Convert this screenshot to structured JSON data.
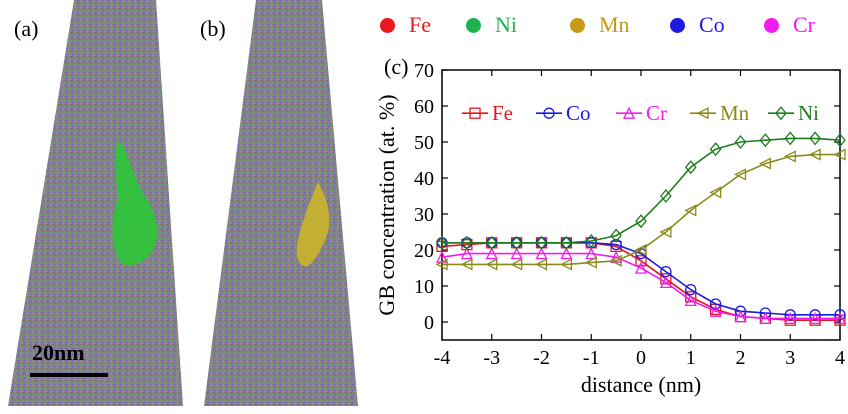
{
  "panels": {
    "a": "(a)",
    "b": "(b)",
    "c": "(c)"
  },
  "scale_bar": "20nm",
  "element_legend": [
    {
      "name": "Fe",
      "color": "#e8171e"
    },
    {
      "name": "Ni",
      "color": "#1fb34f"
    },
    {
      "name": "Mn",
      "color": "#c59a14"
    },
    {
      "name": "Co",
      "color": "#1c1ce0"
    },
    {
      "name": "Cr",
      "color": "#f01cf0"
    }
  ],
  "chart_data": {
    "type": "line",
    "xlabel": "distance (nm)",
    "ylabel": "GB concentration (at. %)",
    "xlim": [
      -4,
      4
    ],
    "ylim": [
      -5,
      70
    ],
    "xticks": [
      "-4",
      "-3",
      "-2",
      "-1",
      "0",
      "1",
      "2",
      "3",
      "4"
    ],
    "yticks": [
      "0",
      "10",
      "20",
      "30",
      "40",
      "50",
      "60",
      "70"
    ],
    "legend_position": "top",
    "x": [
      -4,
      -3.5,
      -3,
      -2.5,
      -2,
      -1.5,
      -1,
      -0.5,
      0,
      0.5,
      1,
      1.5,
      2,
      2.5,
      3,
      3.5,
      4
    ],
    "series": [
      {
        "name": "Fe",
        "color": "#e8171e",
        "marker": "square",
        "values": [
          21,
          21.5,
          22,
          22,
          22,
          22,
          22,
          21,
          17,
          12,
          7,
          3.5,
          1.5,
          1,
          0.5,
          0.5,
          0.5
        ]
      },
      {
        "name": "Co",
        "color": "#1c1ce0",
        "marker": "circle",
        "values": [
          22,
          22,
          22,
          22,
          22,
          22,
          22,
          21.5,
          19,
          14,
          9,
          5,
          3,
          2.5,
          2,
          2,
          2
        ]
      },
      {
        "name": "Cr",
        "color": "#f01cf0",
        "marker": "triangle-up",
        "values": [
          18,
          19,
          19,
          19,
          19,
          19,
          19,
          18,
          15,
          11,
          6,
          3,
          1.5,
          1,
          1,
          1,
          1
        ]
      },
      {
        "name": "Mn",
        "color": "#8a8a1a",
        "marker": "triangle-left",
        "values": [
          16,
          16,
          16,
          16,
          16,
          16,
          16.5,
          17,
          20,
          25,
          31,
          36,
          41,
          44,
          46,
          46.5,
          46.5
        ]
      },
      {
        "name": "Ni",
        "color": "#1e7d1e",
        "marker": "diamond",
        "values": [
          22,
          22,
          22,
          22,
          22,
          22,
          22.5,
          24,
          28,
          35,
          43,
          48,
          50,
          50.5,
          51,
          51,
          50.5
        ]
      }
    ]
  }
}
